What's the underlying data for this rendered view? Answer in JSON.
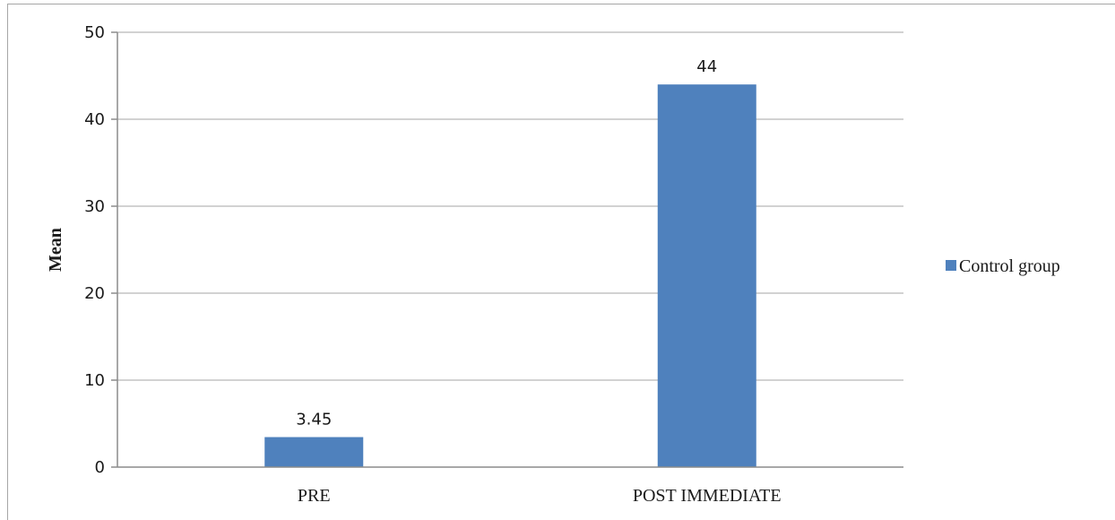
{
  "chart_data": {
    "type": "bar",
    "title": "",
    "xlabel": "",
    "ylabel": "Mean",
    "categories": [
      "PRE",
      "POST IMMEDIATE"
    ],
    "series": [
      {
        "name": "Control group",
        "values": [
          3.45,
          44
        ],
        "color": "#4f81bd"
      }
    ],
    "data_labels": [
      "3.45",
      "44"
    ],
    "ylim": [
      0,
      50
    ],
    "yticks": [
      0,
      10,
      20,
      30,
      40,
      50
    ],
    "grid": true,
    "legend_position": "right"
  }
}
